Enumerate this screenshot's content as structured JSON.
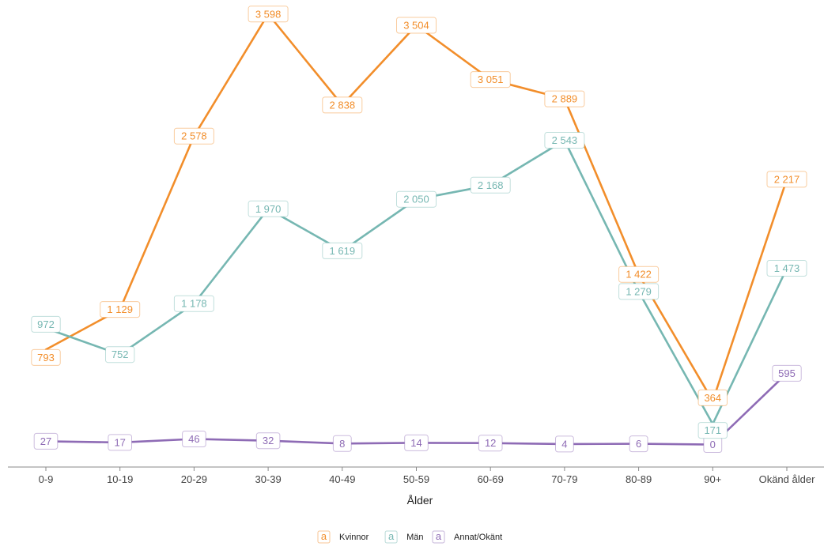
{
  "chart_data": {
    "type": "line",
    "xlabel": "Ålder",
    "ylabel": "",
    "categories": [
      "0-9",
      "10-19",
      "20-29",
      "30-39",
      "40-49",
      "50-59",
      "60-69",
      "70-79",
      "80-89",
      "90+",
      "Okänd ålder"
    ],
    "ylim": [
      0,
      3600
    ],
    "grid": false,
    "legend_position": "bottom",
    "legend_key_glyph": "a",
    "series": [
      {
        "name": "Kvinnor",
        "color": "#f28e2b",
        "values": [
          793,
          1129,
          2578,
          3598,
          2838,
          3504,
          3051,
          2889,
          1422,
          364,
          2217
        ],
        "labels": [
          "793",
          "1 129",
          "2 578",
          "3 598",
          "2 838",
          "3 504",
          "3 051",
          "2 889",
          "1 422",
          "364",
          "2 217"
        ]
      },
      {
        "name": "Män",
        "color": "#76b7b2",
        "values": [
          972,
          752,
          1178,
          1970,
          1619,
          2050,
          2168,
          2543,
          1279,
          171,
          1473
        ],
        "labels": [
          "972",
          "752",
          "1 178",
          "1 970",
          "1 619",
          "2 050",
          "2 168",
          "2 543",
          "1 279",
          "171",
          "1 473"
        ]
      },
      {
        "name": "Annat/Okänt",
        "color": "#8e6bb5",
        "values": [
          27,
          17,
          46,
          32,
          8,
          14,
          12,
          4,
          6,
          0,
          595
        ],
        "labels": [
          "27",
          "17",
          "46",
          "32",
          "8",
          "14",
          "12",
          "4",
          "6",
          "0",
          "595"
        ]
      }
    ]
  }
}
